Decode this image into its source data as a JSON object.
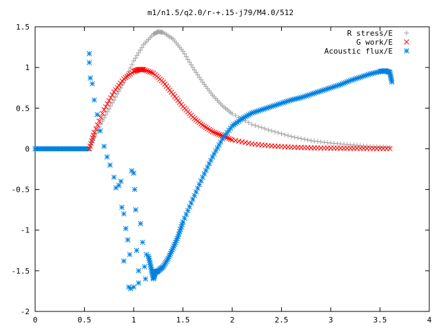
{
  "chart_data": {
    "type": "scatter",
    "title": "m1/n1.5/q2.0/r-+.15-j79/M4.0/512",
    "xlabel": "",
    "ylabel": "",
    "xlim": [
      0,
      4
    ],
    "ylim": [
      -2,
      1.5
    ],
    "xticks": [
      "0",
      "0.5",
      "1",
      "1.5",
      "2",
      "2.5",
      "3",
      "3.5",
      "4"
    ],
    "yticks": [
      "-2",
      "-1.5",
      "-1",
      "-0.5",
      "0",
      "0.5",
      "1",
      "1.5"
    ],
    "grid": false,
    "legend_position": "top-right",
    "series": [
      {
        "name": "R stress/E",
        "marker": "plus",
        "color": "#a0a0a0",
        "points": [
          [
            0.55,
            0.0
          ],
          [
            0.6,
            0.15
          ],
          [
            0.7,
            0.38
          ],
          [
            0.8,
            0.6
          ],
          [
            0.9,
            0.82
          ],
          [
            1.0,
            1.08
          ],
          [
            1.1,
            1.28
          ],
          [
            1.2,
            1.41
          ],
          [
            1.25,
            1.44
          ],
          [
            1.3,
            1.43
          ],
          [
            1.4,
            1.35
          ],
          [
            1.5,
            1.2
          ],
          [
            1.6,
            1.0
          ],
          [
            1.7,
            0.82
          ],
          [
            1.8,
            0.66
          ],
          [
            1.9,
            0.53
          ],
          [
            2.0,
            0.43
          ],
          [
            2.2,
            0.3
          ],
          [
            2.4,
            0.22
          ],
          [
            2.6,
            0.15
          ],
          [
            2.8,
            0.1
          ],
          [
            3.0,
            0.07
          ],
          [
            3.2,
            0.05
          ],
          [
            3.4,
            0.03
          ],
          [
            3.6,
            0.02
          ]
        ]
      },
      {
        "name": "G work/E",
        "marker": "cross",
        "color": "#ff0000",
        "points": [
          [
            0.55,
            0.0
          ],
          [
            0.6,
            0.2
          ],
          [
            0.7,
            0.48
          ],
          [
            0.8,
            0.7
          ],
          [
            0.9,
            0.86
          ],
          [
            1.0,
            0.95
          ],
          [
            1.05,
            0.975
          ],
          [
            1.1,
            0.975
          ],
          [
            1.2,
            0.93
          ],
          [
            1.3,
            0.82
          ],
          [
            1.4,
            0.67
          ],
          [
            1.5,
            0.52
          ],
          [
            1.6,
            0.39
          ],
          [
            1.7,
            0.29
          ],
          [
            1.8,
            0.21
          ],
          [
            1.9,
            0.16
          ],
          [
            2.0,
            0.11
          ],
          [
            2.2,
            0.06
          ],
          [
            2.4,
            0.035
          ],
          [
            2.6,
            0.02
          ],
          [
            2.8,
            0.012
          ],
          [
            3.0,
            0.008
          ],
          [
            3.2,
            0.005
          ],
          [
            3.4,
            0.003
          ],
          [
            3.6,
            0.002
          ]
        ]
      },
      {
        "name": "Acoustic flux/E",
        "marker": "star",
        "color": "#0080e0",
        "points": [
          [
            0.55,
            1.17
          ],
          [
            0.55,
            1.06
          ],
          [
            0.56,
            0.87
          ],
          [
            0.58,
            0.8
          ],
          [
            0.6,
            0.6
          ],
          [
            0.63,
            0.42
          ],
          [
            0.66,
            0.22
          ],
          [
            0.7,
            0.03
          ],
          [
            0.73,
            -0.1
          ],
          [
            0.76,
            -0.2
          ],
          [
            0.8,
            -0.35
          ],
          [
            0.82,
            -0.48
          ],
          [
            0.85,
            -0.45
          ],
          [
            0.87,
            -0.4
          ],
          [
            0.88,
            -0.72
          ],
          [
            0.9,
            -0.8
          ],
          [
            0.92,
            -0.98
          ],
          [
            0.94,
            -1.12
          ],
          [
            0.96,
            -1.3
          ],
          [
            0.98,
            -0.27
          ],
          [
            1.0,
            -0.3
          ],
          [
            1.01,
            -0.5
          ],
          [
            1.02,
            -0.75
          ],
          [
            1.03,
            -1.25
          ],
          [
            1.05,
            -1.5
          ],
          [
            1.07,
            -0.92
          ],
          [
            1.09,
            -1.15
          ],
          [
            1.11,
            -1.45
          ],
          [
            1.13,
            -1.3
          ],
          [
            1.15,
            -1.32
          ],
          [
            1.18,
            -1.48
          ],
          [
            1.2,
            -1.6
          ],
          [
            1.22,
            -1.52
          ],
          [
            1.25,
            -1.5
          ],
          [
            1.3,
            -1.45
          ],
          [
            1.35,
            -1.35
          ],
          [
            1.4,
            -1.22
          ],
          [
            1.45,
            -1.08
          ],
          [
            1.5,
            -0.9
          ],
          [
            1.6,
            -0.62
          ],
          [
            1.7,
            -0.35
          ],
          [
            1.8,
            -0.1
          ],
          [
            1.9,
            0.12
          ],
          [
            2.0,
            0.28
          ],
          [
            2.1,
            0.37
          ],
          [
            2.2,
            0.44
          ],
          [
            2.3,
            0.48
          ],
          [
            2.4,
            0.52
          ],
          [
            2.5,
            0.56
          ],
          [
            2.6,
            0.6
          ],
          [
            2.7,
            0.63
          ],
          [
            2.8,
            0.67
          ],
          [
            2.9,
            0.71
          ],
          [
            3.0,
            0.75
          ],
          [
            3.1,
            0.79
          ],
          [
            3.2,
            0.84
          ],
          [
            3.3,
            0.88
          ],
          [
            3.4,
            0.92
          ],
          [
            3.5,
            0.95
          ],
          [
            3.55,
            0.96
          ],
          [
            3.6,
            0.94
          ],
          [
            3.62,
            0.82
          ],
          [
            0.95,
            -1.7
          ],
          [
            0.97,
            -1.72
          ],
          [
            1.0,
            -1.7
          ],
          [
            1.05,
            -1.65
          ],
          [
            1.12,
            -1.6
          ],
          [
            0.9,
            -1.38
          ]
        ]
      }
    ]
  }
}
